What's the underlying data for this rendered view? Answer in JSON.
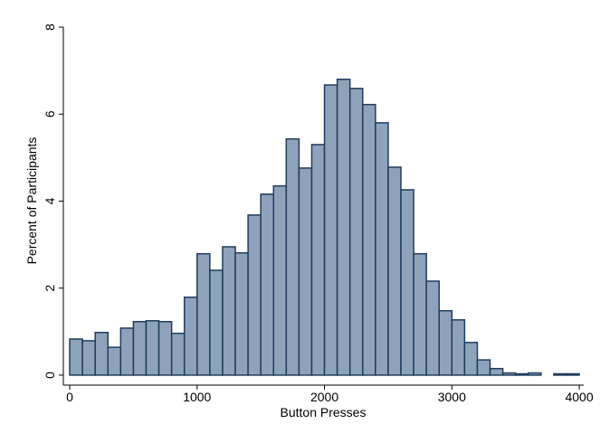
{
  "chart_data": {
    "type": "histogram",
    "x_label": "Button Presses",
    "y_label": "Percent of Participants",
    "bins": [
      0,
      100,
      200,
      300,
      400,
      500,
      600,
      700,
      800,
      900,
      1000,
      1100,
      1200,
      1300,
      1400,
      1500,
      1600,
      1700,
      1800,
      1900,
      2000,
      2100,
      2200,
      2300,
      2400,
      2500,
      2600,
      2700,
      2800,
      2900,
      3000,
      3100,
      3200,
      3300,
      3400,
      3500,
      3600,
      3700,
      3800,
      3900,
      4000
    ],
    "values": [
      0.83,
      0.79,
      0.98,
      0.64,
      1.08,
      1.23,
      1.25,
      1.23,
      0.96,
      1.79,
      2.79,
      2.41,
      2.95,
      2.81,
      3.68,
      4.16,
      4.35,
      5.43,
      4.76,
      5.3,
      6.67,
      6.8,
      6.59,
      6.22,
      5.8,
      4.78,
      4.26,
      2.79,
      2.16,
      1.48,
      1.27,
      0.75,
      0.35,
      0.15,
      0.05,
      0.03,
      0.05,
      0,
      0.03,
      0.03
    ],
    "color": "#8ea3ba",
    "edge_color": "#1f3d5c",
    "xlim": [
      -50,
      4035
    ],
    "ylim": [
      -0.23,
      8
    ],
    "xticks": [
      0,
      1000,
      2000,
      3000,
      4000
    ],
    "yticks": [
      0,
      2,
      4,
      6,
      8
    ],
    "grid": false
  }
}
